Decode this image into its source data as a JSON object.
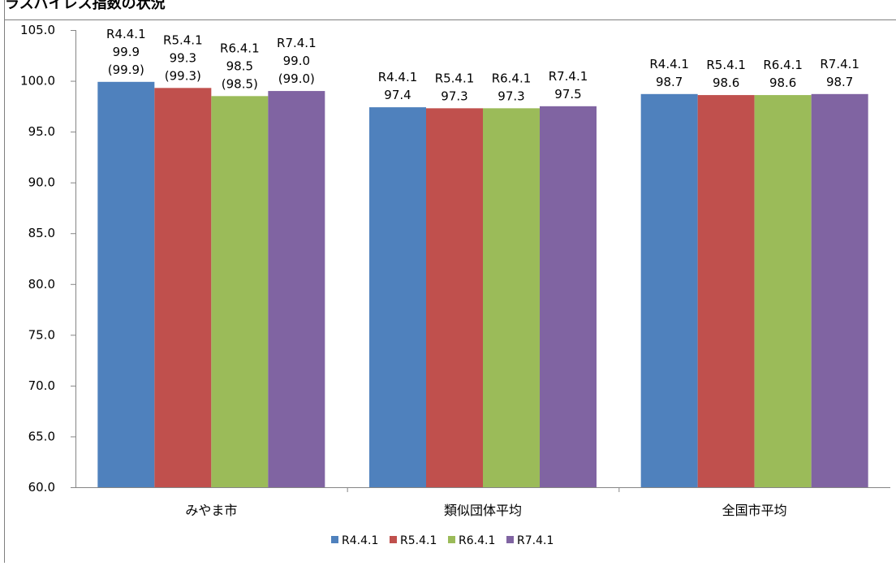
{
  "title": "ラスパイレス指数の状況",
  "chart_data": {
    "type": "bar",
    "title": "ラスパイレス指数の状況",
    "categories": [
      "みやま市",
      "類似団体平均",
      "全国市平均"
    ],
    "series": [
      {
        "name": "R4.4.1",
        "color": "#4f81bd",
        "values": [
          99.9,
          97.4,
          98.7
        ]
      },
      {
        "name": "R5.4.1",
        "color": "#c0504d",
        "values": [
          99.3,
          97.3,
          98.6
        ]
      },
      {
        "name": "R6.4.1",
        "color": "#9bbb59",
        "values": [
          98.5,
          97.3,
          98.6
        ]
      },
      {
        "name": "R7.4.1",
        "color": "#8064a2",
        "values": [
          99.0,
          97.5,
          98.7
        ]
      }
    ],
    "data_labels": [
      [
        [
          "R4.4.1",
          "99.9",
          "(99.9)"
        ],
        [
          "R5.4.1",
          "99.3",
          "(99.3)"
        ],
        [
          "R6.4.1",
          "98.5",
          "(98.5)"
        ],
        [
          "R7.4.1",
          "99.0",
          "(99.0)"
        ]
      ],
      [
        [
          "R4.4.1",
          "97.4"
        ],
        [
          "R5.4.1",
          "97.3"
        ],
        [
          "R6.4.1",
          "97.3"
        ],
        [
          "R7.4.1",
          "97.5"
        ]
      ],
      [
        [
          "R4.4.1",
          "98.7"
        ],
        [
          "R5.4.1",
          "98.6"
        ],
        [
          "R6.4.1",
          "98.6"
        ],
        [
          "R7.4.1",
          "98.7"
        ]
      ]
    ],
    "yticks": [
      "60.0",
      "65.0",
      "70.0",
      "75.0",
      "80.0",
      "85.0",
      "90.0",
      "95.0",
      "100.0",
      "105.0"
    ],
    "ylim": [
      60,
      105
    ],
    "xlabel": "",
    "ylabel": "",
    "grid": false,
    "legend": "bottom-center"
  }
}
